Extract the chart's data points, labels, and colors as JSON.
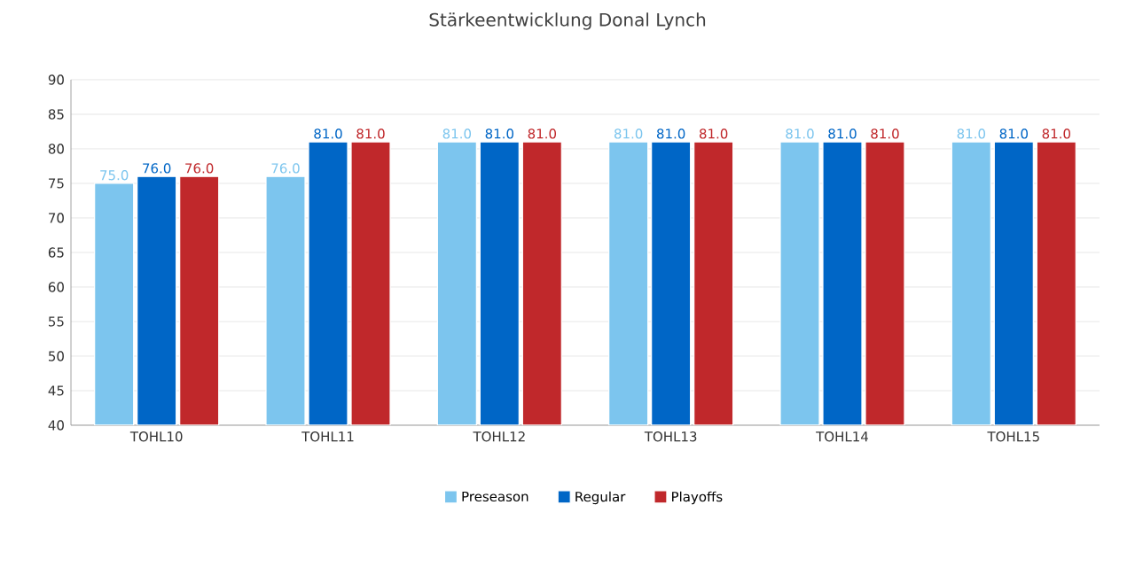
{
  "chart_data": {
    "type": "bar",
    "title": "Stärkeentwicklung Donal Lynch",
    "categories": [
      "TOHL10",
      "TOHL11",
      "TOHL12",
      "TOHL13",
      "TOHL14",
      "TOHL15"
    ],
    "series": [
      {
        "name": "Preseason",
        "color": "#7cc5ee",
        "values": [
          75,
          76,
          81,
          81,
          81,
          81
        ],
        "value_labels": [
          "75.0",
          "76.0",
          "81.0",
          "81.0",
          "81.0",
          "81.0"
        ]
      },
      {
        "name": "Regular",
        "color": "#0066c6",
        "values": [
          76,
          81,
          81,
          81,
          81,
          81
        ],
        "value_labels": [
          "76.0",
          "81.0",
          "81.0",
          "81.0",
          "81.0",
          "81.0"
        ]
      },
      {
        "name": "Playoffs",
        "color": "#c0282b",
        "values": [
          76,
          81,
          81,
          81,
          81,
          81
        ],
        "value_labels": [
          "76.0",
          "81.0",
          "81.0",
          "81.0",
          "81.0",
          "81.0"
        ]
      }
    ],
    "ylim": [
      40,
      90
    ],
    "yticks": [
      40,
      45,
      50,
      55,
      60,
      65,
      70,
      75,
      80,
      85,
      90
    ],
    "grid": "y",
    "legend": "bottom"
  }
}
